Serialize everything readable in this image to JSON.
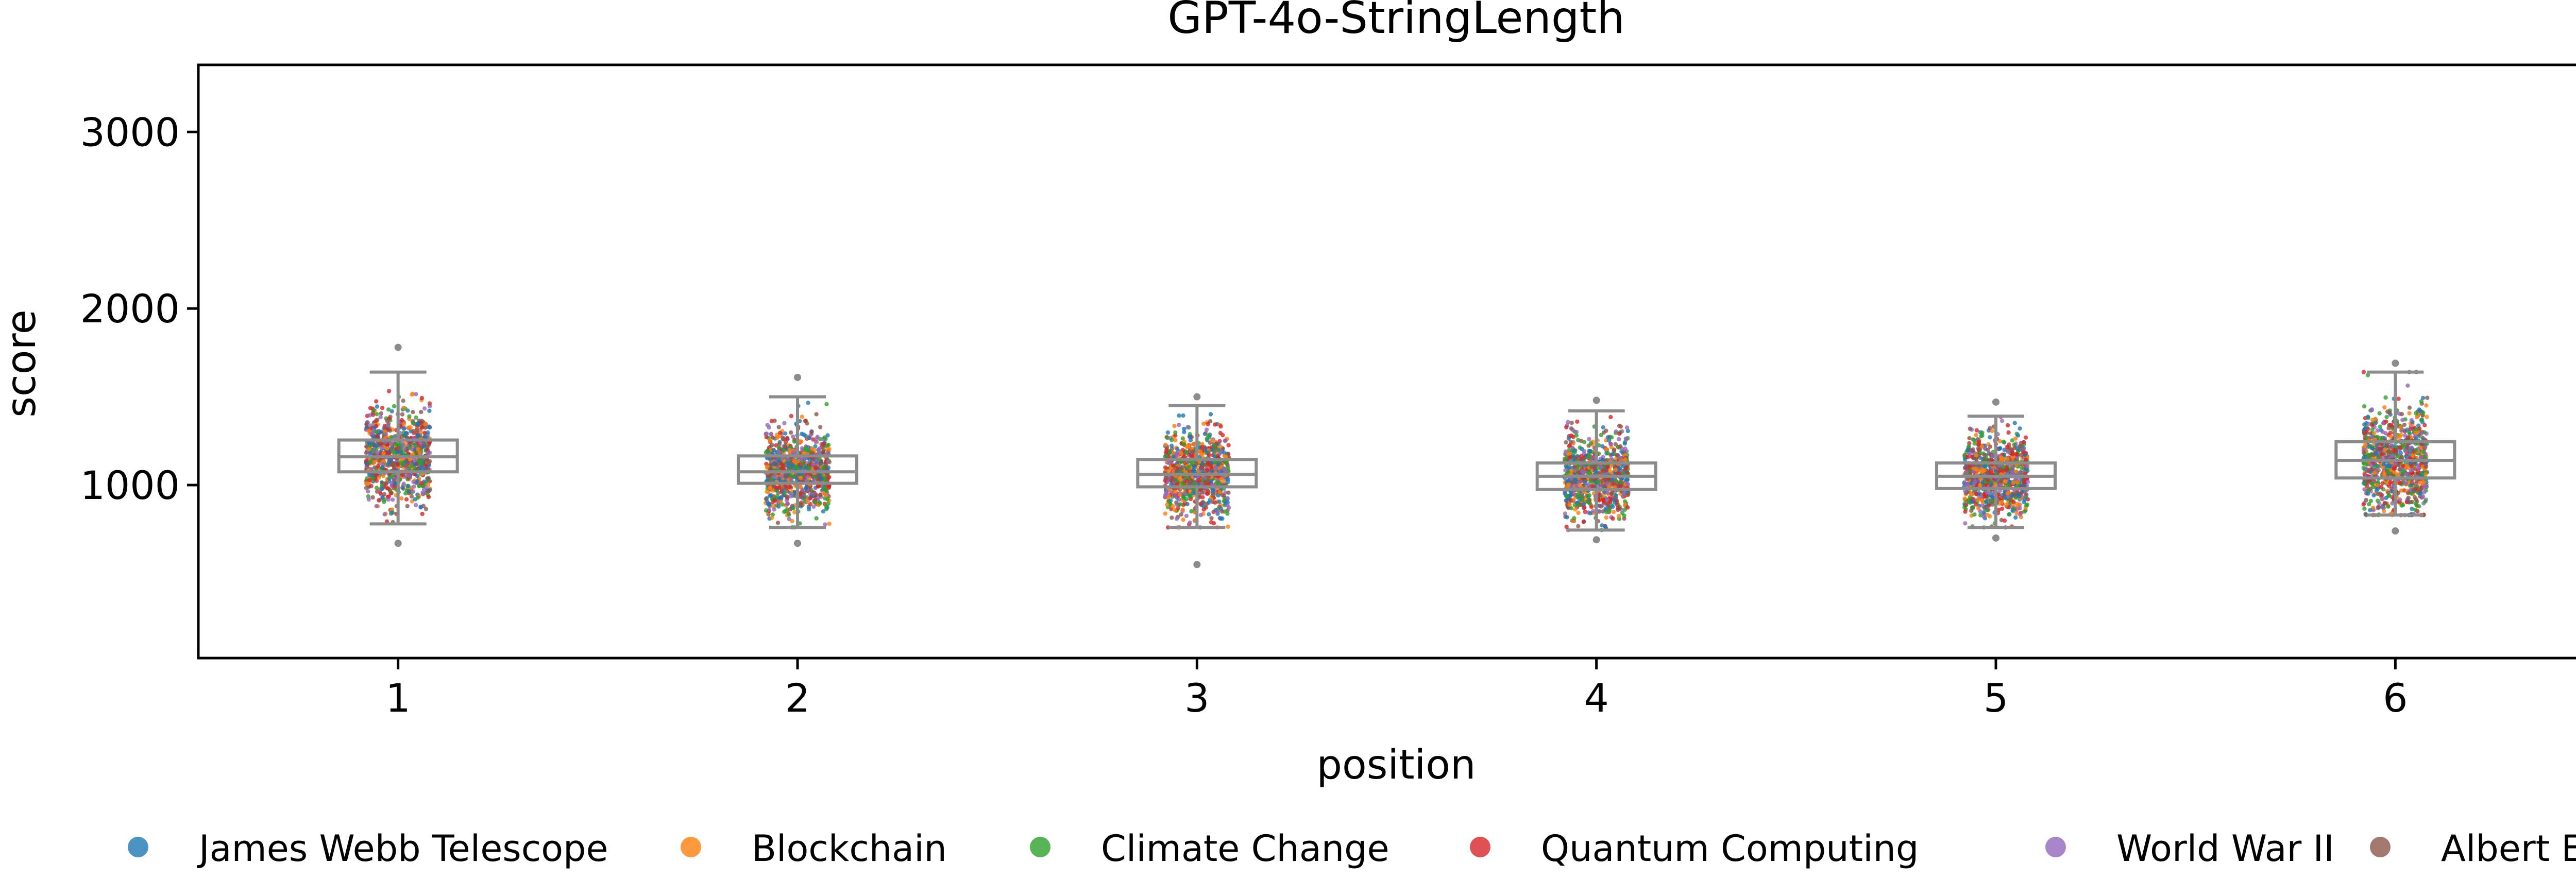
{
  "chart_data": {
    "type": "scatter",
    "title": "GPT-4o-StringLength",
    "xlabel": "position",
    "ylabel": "score",
    "x": [
      1,
      2,
      3,
      4,
      5,
      6
    ],
    "x_tick_labels": [
      "1",
      "2",
      "3",
      "4",
      "5",
      "6"
    ],
    "ylim": [
      20,
      3380
    ],
    "yticks": [
      1000,
      2000,
      3000
    ],
    "y_tick_labels": [
      "1000",
      "2000",
      "3000"
    ],
    "grid": false,
    "legend_placement": "bottom",
    "overlay": "box plot per position (gray) over jittered strip points",
    "series": [
      {
        "name": "James Webb Telescope",
        "color": "#1f77b4"
      },
      {
        "name": "Blockchain",
        "color": "#ff7f0e"
      },
      {
        "name": "Climate Change",
        "color": "#2ca02c"
      },
      {
        "name": "Quantum Computing",
        "color": "#d62728"
      },
      {
        "name": "World War II",
        "color": "#9467bd"
      },
      {
        "name": "Albert Einstein",
        "color": "#8c564b"
      }
    ],
    "box_stats": [
      {
        "position": 1,
        "q1": 1075,
        "median": 1160,
        "q3": 1255,
        "whisker_low": 780,
        "whisker_high": 1640,
        "min": 670,
        "max": 1780
      },
      {
        "position": 2,
        "q1": 1010,
        "median": 1075,
        "q3": 1165,
        "whisker_low": 760,
        "whisker_high": 1500,
        "min": 670,
        "max": 1610
      },
      {
        "position": 3,
        "q1": 990,
        "median": 1060,
        "q3": 1145,
        "whisker_low": 760,
        "whisker_high": 1450,
        "min": 550,
        "max": 1500
      },
      {
        "position": 4,
        "q1": 975,
        "median": 1050,
        "q3": 1125,
        "whisker_low": 745,
        "whisker_high": 1420,
        "min": 690,
        "max": 1480
      },
      {
        "position": 5,
        "q1": 980,
        "median": 1050,
        "q3": 1125,
        "whisker_low": 760,
        "whisker_high": 1390,
        "min": 700,
        "max": 1470
      },
      {
        "position": 6,
        "q1": 1040,
        "median": 1140,
        "q3": 1245,
        "whisker_low": 830,
        "whisker_high": 1640,
        "min": 740,
        "max": 1690
      }
    ]
  }
}
